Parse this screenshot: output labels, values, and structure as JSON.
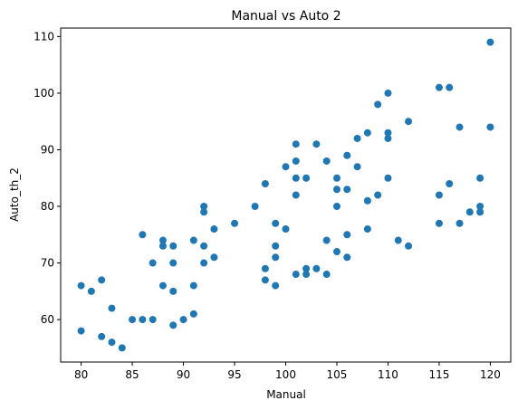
{
  "chart_data": {
    "type": "scatter",
    "title": "Manual vs Auto 2",
    "xlabel": "Manual",
    "ylabel": "Auto_th_2",
    "xlim": [
      78,
      122
    ],
    "ylim": [
      52.5,
      111.5
    ],
    "xticks": [
      80,
      85,
      90,
      95,
      100,
      105,
      110,
      115,
      120
    ],
    "yticks": [
      60,
      70,
      80,
      90,
      100,
      110
    ],
    "grid": false,
    "colors": {
      "marker": "#1f77b4"
    },
    "series": [
      {
        "points": [
          [
            80,
            66
          ],
          [
            80,
            58
          ],
          [
            81,
            65
          ],
          [
            82,
            67
          ],
          [
            82,
            57
          ],
          [
            83,
            62
          ],
          [
            83,
            56
          ],
          [
            84,
            55
          ],
          [
            85,
            60
          ],
          [
            86,
            75
          ],
          [
            86,
            60
          ],
          [
            87,
            70
          ],
          [
            87,
            60
          ],
          [
            88,
            74
          ],
          [
            88,
            73
          ],
          [
            88,
            66
          ],
          [
            89,
            73
          ],
          [
            89,
            70
          ],
          [
            89,
            65
          ],
          [
            89,
            59
          ],
          [
            90,
            60
          ],
          [
            91,
            74
          ],
          [
            91,
            66
          ],
          [
            91,
            61
          ],
          [
            92,
            80
          ],
          [
            92,
            79
          ],
          [
            92,
            73
          ],
          [
            92,
            70
          ],
          [
            93,
            76
          ],
          [
            93,
            71
          ],
          [
            95,
            77
          ],
          [
            97,
            80
          ],
          [
            98,
            84
          ],
          [
            98,
            69
          ],
          [
            98,
            67
          ],
          [
            99,
            77
          ],
          [
            99,
            73
          ],
          [
            99,
            71
          ],
          [
            99,
            66
          ],
          [
            100,
            87
          ],
          [
            100,
            76
          ],
          [
            101,
            91
          ],
          [
            101,
            88
          ],
          [
            101,
            85
          ],
          [
            101,
            82
          ],
          [
            101,
            68
          ],
          [
            102,
            85
          ],
          [
            102,
            69
          ],
          [
            102,
            68
          ],
          [
            103,
            91
          ],
          [
            103,
            69
          ],
          [
            104,
            88
          ],
          [
            104,
            74
          ],
          [
            104,
            68
          ],
          [
            105,
            85
          ],
          [
            105,
            83
          ],
          [
            105,
            80
          ],
          [
            105,
            72
          ],
          [
            106,
            89
          ],
          [
            106,
            83
          ],
          [
            106,
            75
          ],
          [
            106,
            71
          ],
          [
            107,
            92
          ],
          [
            107,
            87
          ],
          [
            108,
            93
          ],
          [
            108,
            81
          ],
          [
            108,
            76
          ],
          [
            109,
            98
          ],
          [
            109,
            82
          ],
          [
            110,
            100
          ],
          [
            110,
            93
          ],
          [
            110,
            92
          ],
          [
            110,
            85
          ],
          [
            111,
            74
          ],
          [
            112,
            95
          ],
          [
            112,
            73
          ],
          [
            115,
            101
          ],
          [
            115,
            82
          ],
          [
            115,
            77
          ],
          [
            116,
            101
          ],
          [
            116,
            84
          ],
          [
            117,
            94
          ],
          [
            117,
            77
          ],
          [
            118,
            79
          ],
          [
            119,
            85
          ],
          [
            119,
            80
          ],
          [
            119,
            79
          ],
          [
            120,
            109
          ],
          [
            120,
            94
          ]
        ]
      }
    ]
  }
}
